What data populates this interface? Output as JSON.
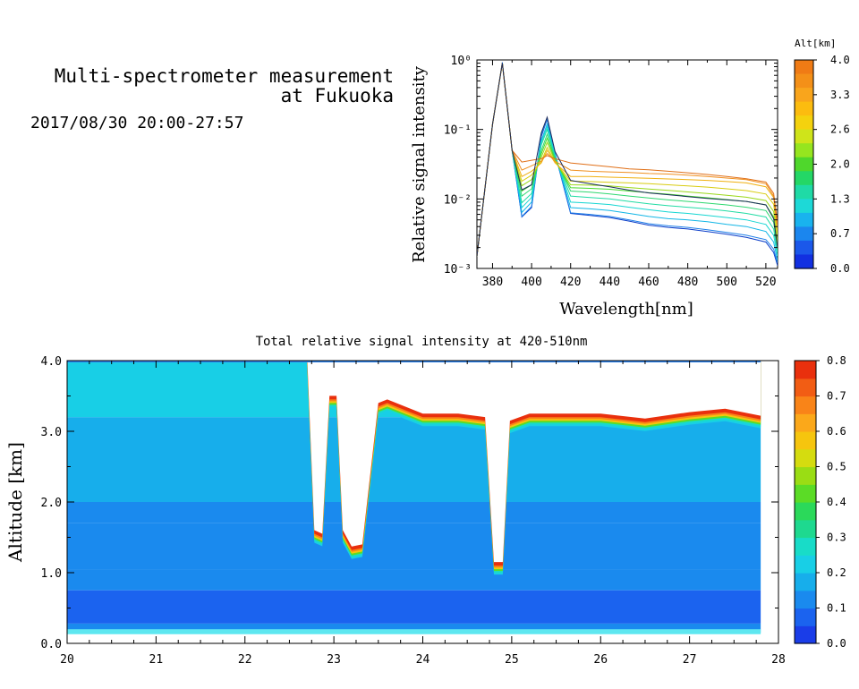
{
  "header": {
    "title_line1": "Multi-spectrometer measurement",
    "title_line2": "at Fukuoka",
    "datetime": "2017/08/30 20:00-27:57"
  },
  "chart_data": [
    {
      "type": "line",
      "xlabel": "Wavelength[nm]",
      "ylabel": "Relative signal intensity",
      "yscale": "log",
      "xlim": [
        372,
        526
      ],
      "ylim": [
        0.001,
        1
      ],
      "xticks": [
        "380",
        "400",
        "420",
        "440",
        "460",
        "480",
        "500",
        "520"
      ],
      "yticks": [
        "10⁰",
        "10⁻¹",
        "10⁻²",
        "10⁻³"
      ],
      "x": [
        372,
        380,
        385,
        390,
        395,
        400,
        405,
        408,
        412,
        420,
        430,
        440,
        450,
        460,
        470,
        480,
        490,
        500,
        510,
        520,
        524,
        526
      ],
      "series": [
        {
          "alt": 0.0,
          "color": "#0a3cc8",
          "values": [
            0.0015,
            0.12,
            0.92,
            0.05,
            0.0055,
            0.0075,
            0.08,
            0.14,
            0.045,
            0.0062,
            0.0058,
            0.0054,
            0.0048,
            0.0042,
            0.0039,
            0.0037,
            0.0034,
            0.0031,
            0.0028,
            0.0024,
            0.0017,
            0.0011
          ]
        },
        {
          "alt": 0.3,
          "color": "#1f7fe8",
          "values": [
            0.0015,
            0.12,
            0.92,
            0.05,
            0.0056,
            0.0078,
            0.085,
            0.14,
            0.046,
            0.0063,
            0.006,
            0.0056,
            0.005,
            0.0044,
            0.0041,
            0.0039,
            0.0036,
            0.0033,
            0.003,
            0.0026,
            0.0019,
            0.0012
          ]
        },
        {
          "alt": 0.7,
          "color": "#12b6e6",
          "values": [
            0.0015,
            0.12,
            0.9,
            0.05,
            0.0064,
            0.009,
            0.07,
            0.12,
            0.044,
            0.0075,
            0.0072,
            0.0068,
            0.0062,
            0.0056,
            0.0052,
            0.005,
            0.0047,
            0.0043,
            0.004,
            0.0034,
            0.0024,
            0.0013
          ]
        },
        {
          "alt": 1.0,
          "color": "#16d6d2",
          "values": [
            0.0015,
            0.12,
            0.9,
            0.05,
            0.0075,
            0.0105,
            0.065,
            0.11,
            0.042,
            0.009,
            0.0087,
            0.0083,
            0.0076,
            0.007,
            0.0065,
            0.0062,
            0.0058,
            0.0054,
            0.005,
            0.0043,
            0.003,
            0.0015
          ]
        },
        {
          "alt": 1.3,
          "color": "#22dca4",
          "values": [
            0.0015,
            0.12,
            0.9,
            0.05,
            0.0088,
            0.012,
            0.06,
            0.1,
            0.04,
            0.011,
            0.0105,
            0.01,
            0.0092,
            0.0085,
            0.008,
            0.0076,
            0.0072,
            0.0067,
            0.0062,
            0.0055,
            0.0037,
            0.0017
          ]
        },
        {
          "alt": 1.7,
          "color": "#2ed870",
          "values": [
            0.0015,
            0.12,
            0.9,
            0.05,
            0.011,
            0.014,
            0.05,
            0.085,
            0.038,
            0.013,
            0.0125,
            0.0118,
            0.011,
            0.0103,
            0.0097,
            0.0092,
            0.0087,
            0.0082,
            0.0076,
            0.0068,
            0.0046,
            0.0019
          ]
        },
        {
          "alt": 2.0,
          "color": "#46dc2a",
          "values": [
            0.0015,
            0.12,
            0.9,
            0.05,
            0.013,
            0.016,
            0.045,
            0.075,
            0.036,
            0.0145,
            0.0142,
            0.0138,
            0.013,
            0.0123,
            0.0117,
            0.011,
            0.0104,
            0.0098,
            0.0092,
            0.0082,
            0.0055,
            0.0021
          ]
        },
        {
          "alt": 2.3,
          "color": "#9ad818",
          "values": [
            0.0015,
            0.12,
            0.9,
            0.05,
            0.0155,
            0.019,
            0.04,
            0.065,
            0.035,
            0.016,
            0.0158,
            0.0154,
            0.0146,
            0.0139,
            0.0133,
            0.0126,
            0.012,
            0.0113,
            0.0106,
            0.0095,
            0.0066,
            0.0024
          ]
        },
        {
          "alt": 2.6,
          "color": "#d8cc10",
          "values": [
            0.0015,
            0.12,
            0.9,
            0.05,
            0.018,
            0.022,
            0.035,
            0.055,
            0.034,
            0.018,
            0.0178,
            0.0174,
            0.017,
            0.0166,
            0.016,
            0.0154,
            0.0148,
            0.014,
            0.0132,
            0.0118,
            0.0084,
            0.003
          ]
        },
        {
          "alt": 3.0,
          "color": "#f0b010",
          "values": [
            0.0015,
            0.12,
            0.9,
            0.05,
            0.021,
            0.025,
            0.033,
            0.05,
            0.033,
            0.021,
            0.021,
            0.0206,
            0.0202,
            0.0198,
            0.0194,
            0.019,
            0.0185,
            0.0178,
            0.017,
            0.015,
            0.0105,
            0.0035
          ]
        },
        {
          "alt": 3.3,
          "color": "#f09020",
          "values": [
            0.0015,
            0.12,
            0.9,
            0.05,
            0.026,
            0.03,
            0.035,
            0.045,
            0.035,
            0.026,
            0.025,
            0.0245,
            0.024,
            0.0232,
            0.0228,
            0.022,
            0.021,
            0.02,
            0.019,
            0.0165,
            0.011,
            0.0038
          ]
        },
        {
          "alt": 3.6,
          "color": "#e07018",
          "values": [
            0.0015,
            0.12,
            0.9,
            0.05,
            0.034,
            0.036,
            0.038,
            0.042,
            0.038,
            0.033,
            0.031,
            0.029,
            0.027,
            0.0262,
            0.025,
            0.0238,
            0.0225,
            0.021,
            0.0195,
            0.0175,
            0.012,
            0.0045
          ]
        },
        {
          "alt": 4.0,
          "color": "#1c2c5c",
          "values": [
            0.0015,
            0.12,
            0.9,
            0.05,
            0.0135,
            0.016,
            0.09,
            0.15,
            0.048,
            0.0185,
            0.0165,
            0.015,
            0.0134,
            0.0122,
            0.0115,
            0.0108,
            0.0102,
            0.0097,
            0.0092,
            0.0082,
            0.0052,
            0.002
          ]
        }
      ]
    },
    {
      "type": "colorbar",
      "title": "Alt[km]",
      "ticks": [
        "4.0",
        "3.3",
        "2.6",
        "2.0",
        "1.3",
        "0.7",
        "0.0"
      ],
      "colors_top_to_bottom": [
        "#f07b15",
        "#f49018",
        "#f9a51c",
        "#fcbc0f",
        "#f4d20e",
        "#cfe41a",
        "#96e51f",
        "#4fd72c",
        "#24d766",
        "#1fdaa6",
        "#1dd9d7",
        "#19b3ee",
        "#1b86ee",
        "#1b58ea",
        "#1230e1"
      ]
    },
    {
      "type": "heatmap",
      "title": "Total relative signal intensity at 420-510nm",
      "xlabel": "",
      "ylabel": "Altitude [km]",
      "xlim": [
        20,
        28
      ],
      "ylim": [
        0,
        4
      ],
      "xticks": [
        "20",
        "21",
        "22",
        "23",
        "24",
        "25",
        "26",
        "27",
        "28"
      ],
      "yticks": [
        "4.0",
        "3.0",
        "2.0",
        "1.0",
        "0.0"
      ],
      "data_end_hour": 27.8,
      "cloud_base_profile": [
        [
          22.7,
          4.0
        ],
        [
          22.78,
          1.55
        ],
        [
          22.87,
          1.5
        ],
        [
          22.95,
          3.45
        ],
        [
          23.03,
          3.45
        ],
        [
          23.1,
          1.55
        ],
        [
          23.2,
          1.32
        ],
        [
          23.32,
          1.35
        ],
        [
          23.5,
          3.35
        ],
        [
          23.6,
          3.4
        ],
        [
          24.0,
          3.2
        ],
        [
          24.4,
          3.2
        ],
        [
          24.7,
          3.15
        ],
        [
          24.8,
          1.1
        ],
        [
          24.9,
          1.1
        ],
        [
          24.98,
          3.1
        ],
        [
          25.2,
          3.2
        ],
        [
          26.0,
          3.2
        ],
        [
          26.5,
          3.13
        ],
        [
          27.0,
          3.22
        ],
        [
          27.4,
          3.27
        ],
        [
          27.8,
          3.17
        ]
      ],
      "profile_levels": [
        {
          "alt_top": 4.0,
          "value": 0.2
        },
        {
          "alt_top": 3.2,
          "value": 0.18
        },
        {
          "alt_top": 2.0,
          "value": 0.15
        },
        {
          "alt_top": 1.7,
          "value": 0.13
        },
        {
          "alt_top": 1.05,
          "value": 0.1
        },
        {
          "alt_top": 0.75,
          "value": 0.07
        },
        {
          "alt_top": 0.28,
          "value": 0.14
        }
      ]
    },
    {
      "type": "colorbar",
      "ticks": [
        "0.8",
        "0.7",
        "0.6",
        "0.5",
        "0.4",
        "0.3",
        "0.2",
        "0.1",
        "0.0"
      ],
      "colors_bottom_to_top": [
        "#1a3de8",
        "#1b63ef",
        "#1a8aee",
        "#17aeeb",
        "#18cfe6",
        "#18dcc8",
        "#1ed98f",
        "#2bd95a",
        "#5bdc26",
        "#9add14",
        "#d5dc0f",
        "#f6c50e",
        "#fba81a",
        "#f98418",
        "#f25d14",
        "#e9300d"
      ]
    }
  ]
}
